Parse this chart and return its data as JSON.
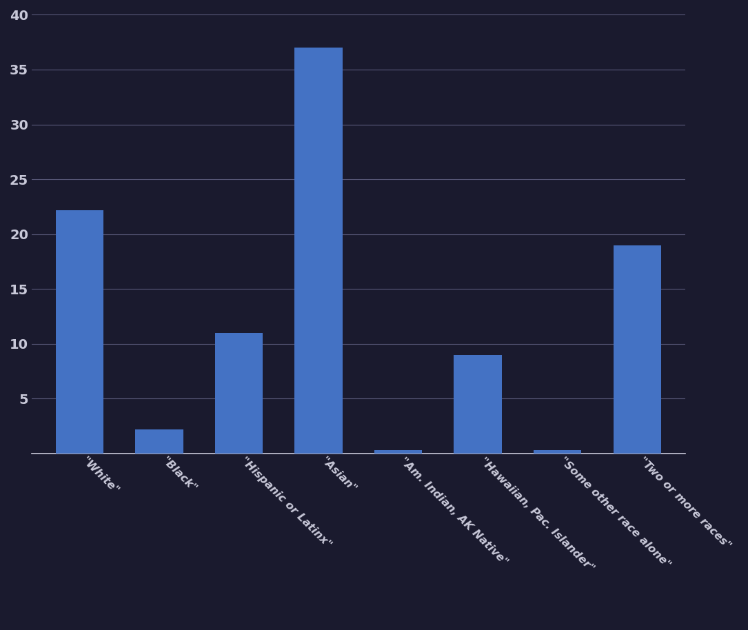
{
  "categories": [
    "\"White\"",
    "\"Black\"",
    "\"Hispanic or Latinx\"",
    "\"Asian\"",
    "\"Am. Indian, AK Native\"",
    "\"Hawaiian, Pac. Islander\"",
    "\"Some other race alone\"",
    "\"Two or more races\""
  ],
  "values": [
    22.2,
    2.2,
    11.0,
    37.0,
    0.3,
    9.0,
    0.3,
    19.0
  ],
  "bar_color": "#4472c4",
  "background_color": "#1a1a2e",
  "grid_color": "#5a5a7a",
  "text_color": "#c8c8d8",
  "ylim": [
    0,
    40
  ],
  "yticks": [
    0,
    5,
    10,
    15,
    20,
    25,
    30,
    35,
    40
  ],
  "label_fontsize": 11.5,
  "ytick_fontsize": 14
}
